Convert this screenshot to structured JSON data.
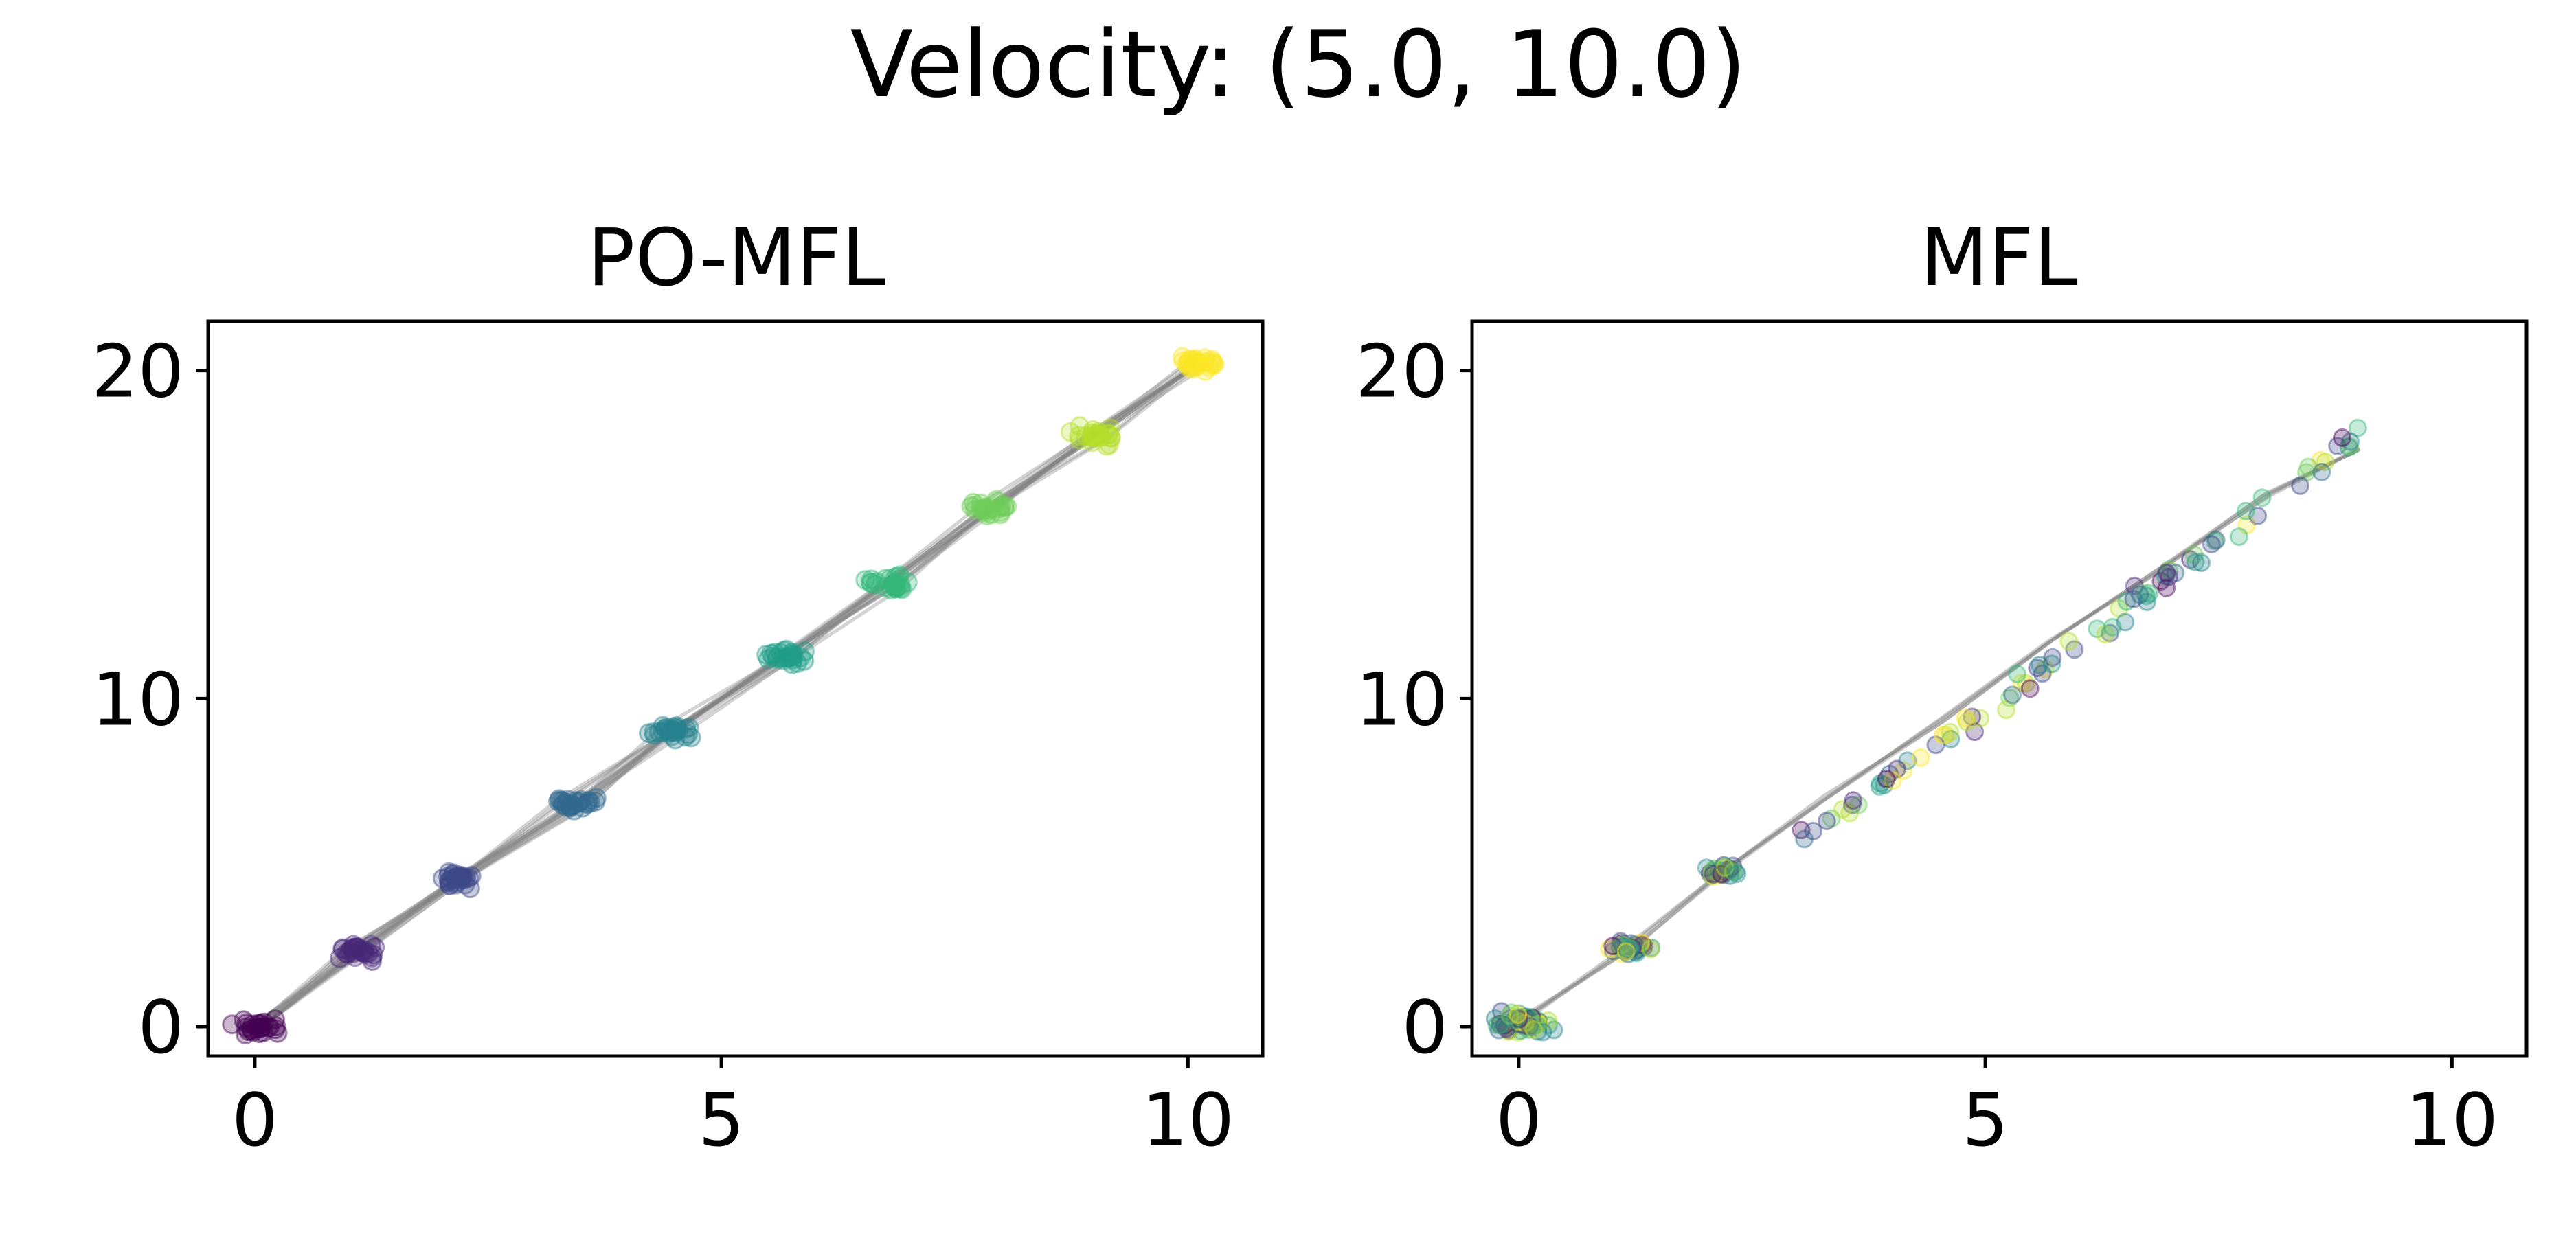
{
  "figure": {
    "suptitle": "Velocity: (5.0, 10.0)"
  },
  "chart_data": [
    {
      "type": "scatter",
      "title": "PO-MFL",
      "xlabel": "",
      "ylabel": "",
      "xlim": [
        -0.5,
        10.8
      ],
      "ylim": [
        -0.9,
        21.5
      ],
      "xticks": [
        0,
        5,
        10
      ],
      "yticks": [
        0,
        10,
        20
      ],
      "xtick_labels": [
        "0",
        "5",
        "10"
      ],
      "ytick_labels": [
        "0",
        "10",
        "20"
      ],
      "grid": false,
      "colormap": "viridis",
      "point_alpha": 0.3,
      "trajectory_color": "#808080",
      "description": "Repeated particle trajectories; points grouped into 10 time-step clusters colored by time",
      "clusters": [
        {
          "t": 0,
          "x": 0.0,
          "y": 0.0,
          "color": "#440154"
        },
        {
          "t": 1,
          "x": 1.1,
          "y": 2.3,
          "color": "#482878"
        },
        {
          "t": 2,
          "x": 2.2,
          "y": 4.5,
          "color": "#3e4989"
        },
        {
          "t": 3,
          "x": 3.4,
          "y": 6.8,
          "color": "#31688e"
        },
        {
          "t": 4,
          "x": 4.5,
          "y": 9.0,
          "color": "#26828e"
        },
        {
          "t": 5,
          "x": 5.7,
          "y": 11.3,
          "color": "#1f9e89"
        },
        {
          "t": 6,
          "x": 6.8,
          "y": 13.5,
          "color": "#35b779"
        },
        {
          "t": 7,
          "x": 7.9,
          "y": 15.8,
          "color": "#6ece58"
        },
        {
          "t": 8,
          "x": 9.0,
          "y": 18.0,
          "color": "#b5de2b"
        },
        {
          "t": 9,
          "x": 10.1,
          "y": 20.2,
          "color": "#fde725"
        }
      ]
    },
    {
      "type": "scatter",
      "title": "MFL",
      "xlabel": "",
      "ylabel": "",
      "xlim": [
        -0.5,
        10.8
      ],
      "ylim": [
        -0.9,
        21.5
      ],
      "xticks": [
        0,
        5,
        10
      ],
      "yticks": [
        0,
        10,
        20
      ],
      "xtick_labels": [
        "0",
        "5",
        "10"
      ],
      "ytick_labels": [
        "0",
        "10",
        "20"
      ],
      "grid": false,
      "colormap": "viridis",
      "point_alpha": 0.3,
      "trajectory_color": "#808080",
      "description": "Points with mixed time colors spread along the diagonal; dense clusters near origin",
      "clusters": [
        {
          "x": 0.0,
          "y": 0.1
        },
        {
          "x": 1.2,
          "y": 2.4
        },
        {
          "x": 2.2,
          "y": 4.7
        }
      ],
      "trajectory": {
        "x": [
          0.0,
          1.2,
          2.2,
          3.3,
          4.5,
          5.7,
          6.8,
          8.0,
          9.0
        ],
        "y": [
          0.1,
          2.4,
          4.7,
          7.0,
          9.3,
          11.8,
          13.8,
          16.2,
          17.6
        ]
      },
      "spread_range": {
        "x": [
          3.0,
          9.0
        ],
        "y": [
          5.5,
          18.0
        ]
      }
    }
  ]
}
